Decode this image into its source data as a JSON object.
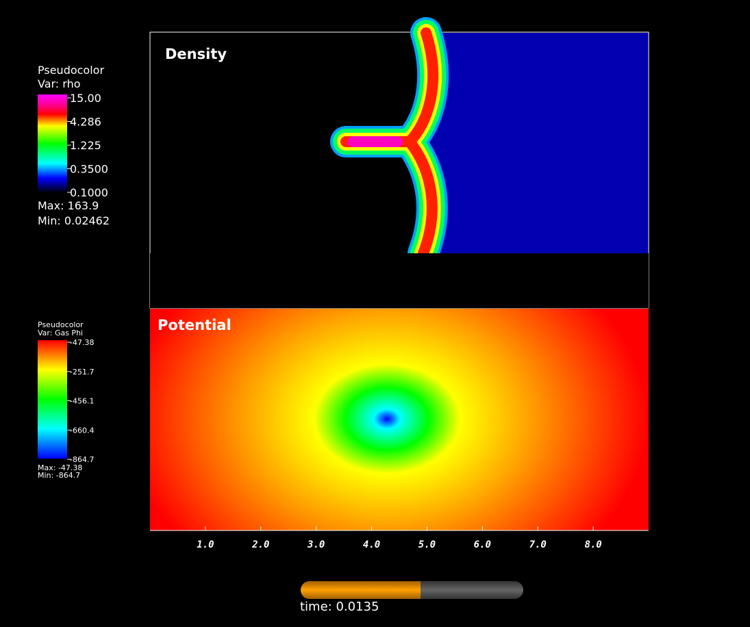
{
  "panels": [
    {
      "title": "Density",
      "legend": {
        "heading": "Pseudocolor",
        "var": "Var: rho",
        "ticks": [
          "15.00",
          "4.286",
          "1.225",
          "0.3500",
          "0.1000"
        ],
        "max": "Max:  163.9",
        "min": "Min:  0.02462"
      }
    },
    {
      "title": "Potential",
      "legend": {
        "heading": "Pseudocolor",
        "var": "Var: Gas Phi",
        "ticks": [
          "-47.38",
          "-251.7",
          "-456.1",
          "-660.4",
          "-864.7"
        ],
        "max": "Max: -47.38",
        "min": "Min: -864.7"
      }
    }
  ],
  "axis": {
    "xlim": [
      0,
      9
    ],
    "xticks": [
      {
        "value": 1,
        "label": "1.0"
      },
      {
        "value": 2,
        "label": "2.0"
      },
      {
        "value": 3,
        "label": "3.0"
      },
      {
        "value": 4,
        "label": "4.0"
      },
      {
        "value": 5,
        "label": "5.0"
      },
      {
        "value": 6,
        "label": "6.0"
      },
      {
        "value": 7,
        "label": "7.0"
      },
      {
        "value": 8,
        "label": "8.0"
      }
    ]
  },
  "time": "time: 0.0135"
}
